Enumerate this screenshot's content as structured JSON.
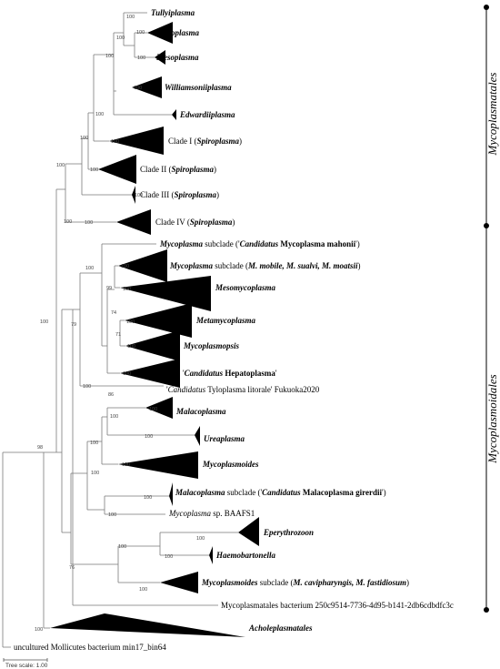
{
  "taxa": {
    "tullyiplasma": [
      {
        "t": "Tullyiplasma",
        "i": true,
        "b": true
      }
    ],
    "mycoplasma": [
      {
        "t": "Mycoplasma",
        "i": true,
        "b": true
      }
    ],
    "mesoplasma": [
      {
        "t": "Mesoplasma",
        "i": true,
        "b": true
      }
    ],
    "williamsoniiplasma": [
      {
        "t": "Williamsoniiplasma",
        "i": true,
        "b": true
      }
    ],
    "edwardiiplasma": [
      {
        "t": "Edwardiiplasma",
        "i": true,
        "b": true
      }
    ],
    "clade1": [
      {
        "t": "Clade I ("
      },
      {
        "t": "Spiroplasma",
        "i": true,
        "b": true
      },
      {
        "t": ")"
      }
    ],
    "clade2": [
      {
        "t": "Clade II ("
      },
      {
        "t": "Spiroplasma",
        "i": true,
        "b": true
      },
      {
        "t": ")"
      }
    ],
    "clade3": [
      {
        "t": "Clade III ("
      },
      {
        "t": "Spiroplasma",
        "i": true,
        "b": true
      },
      {
        "t": ")"
      }
    ],
    "clade4": [
      {
        "t": "Clade IV ("
      },
      {
        "t": "Spiroplasma",
        "i": true,
        "b": true
      },
      {
        "t": ")"
      }
    ],
    "myco_mahonii": [
      {
        "t": "Mycoplasma",
        "i": true,
        "b": true
      },
      {
        "t": " subclade ('"
      },
      {
        "t": "Candidatus",
        "i": true,
        "b": true
      },
      {
        "t": " Mycoplasma mahonii",
        "b": true
      },
      {
        "t": "')"
      }
    ],
    "myco_mobile": [
      {
        "t": "Mycoplasma",
        "i": true,
        "b": true
      },
      {
        "t": " subclade ("
      },
      {
        "t": "M. mobile, M. sualvi, M. moatsii",
        "i": true,
        "b": true
      },
      {
        "t": ")"
      }
    ],
    "mesomycoplasma": [
      {
        "t": "Mesomycoplasma",
        "i": true,
        "b": true
      }
    ],
    "metamycoplasma": [
      {
        "t": "Metamycoplasma",
        "i": true,
        "b": true
      }
    ],
    "mycoplasmopsis": [
      {
        "t": "Mycoplasmopsis",
        "i": true,
        "b": true
      }
    ],
    "hepatoplasma": [
      {
        "t": "'"
      },
      {
        "t": "Candidatus",
        "i": true,
        "b": true
      },
      {
        "t": " Hepatoplasma",
        "b": true
      },
      {
        "t": "'"
      }
    ],
    "tyloplasma": [
      {
        "t": "'"
      },
      {
        "t": "Candidatus",
        "i": true
      },
      {
        "t": " Tyloplasma litorale' Fukuoka2020"
      }
    ],
    "malacoplasma": [
      {
        "t": "Malacoplasma",
        "i": true,
        "b": true
      }
    ],
    "ureaplasma": [
      {
        "t": "Ureaplasma",
        "i": true,
        "b": true
      }
    ],
    "mycoplasmoides": [
      {
        "t": "Mycoplasmoides",
        "i": true,
        "b": true
      }
    ],
    "malaco_girerdii": [
      {
        "t": "Malacoplasma",
        "i": true,
        "b": true
      },
      {
        "t": " subclade ('"
      },
      {
        "t": "Candidatus",
        "i": true,
        "b": true
      },
      {
        "t": " Malacoplasma girerdii",
        "b": true
      },
      {
        "t": "')"
      }
    ],
    "baafs1": [
      {
        "t": "Mycoplasma",
        "i": true
      },
      {
        "t": " sp. BAAFS1"
      }
    ],
    "eperythrozoon": [
      {
        "t": "Eperythrozoon",
        "i": true,
        "b": true
      }
    ],
    "haemobartonella": [
      {
        "t": "Haemobartonella",
        "i": true,
        "b": true
      }
    ],
    "mycoplasmoides_sub": [
      {
        "t": "Mycoplasmoides",
        "i": true,
        "b": true
      },
      {
        "t": " subclade ("
      },
      {
        "t": "M. cavipharyngis, M. fastidiosum",
        "i": true,
        "b": true
      },
      {
        "t": ")"
      }
    ],
    "mycoplasmatales_bact": [
      {
        "t": "Mycoplasmatales bacterium 250c9514-7736-4d95-b141-2db6cdbdfc3c"
      }
    ],
    "acholeplasmatales": [
      {
        "t": "Acholeplasmatales",
        "i": true,
        "b": true
      }
    ],
    "uncultured": [
      {
        "t": "uncultured Mollicutes bacterium min17_bin64"
      }
    ]
  },
  "orders": {
    "mycoplasmatales": "Mycoplasmatales",
    "mycoplasmoidales": "Mycoplasmoidales"
  },
  "scale_label": "Tree scale: 1.00"
}
